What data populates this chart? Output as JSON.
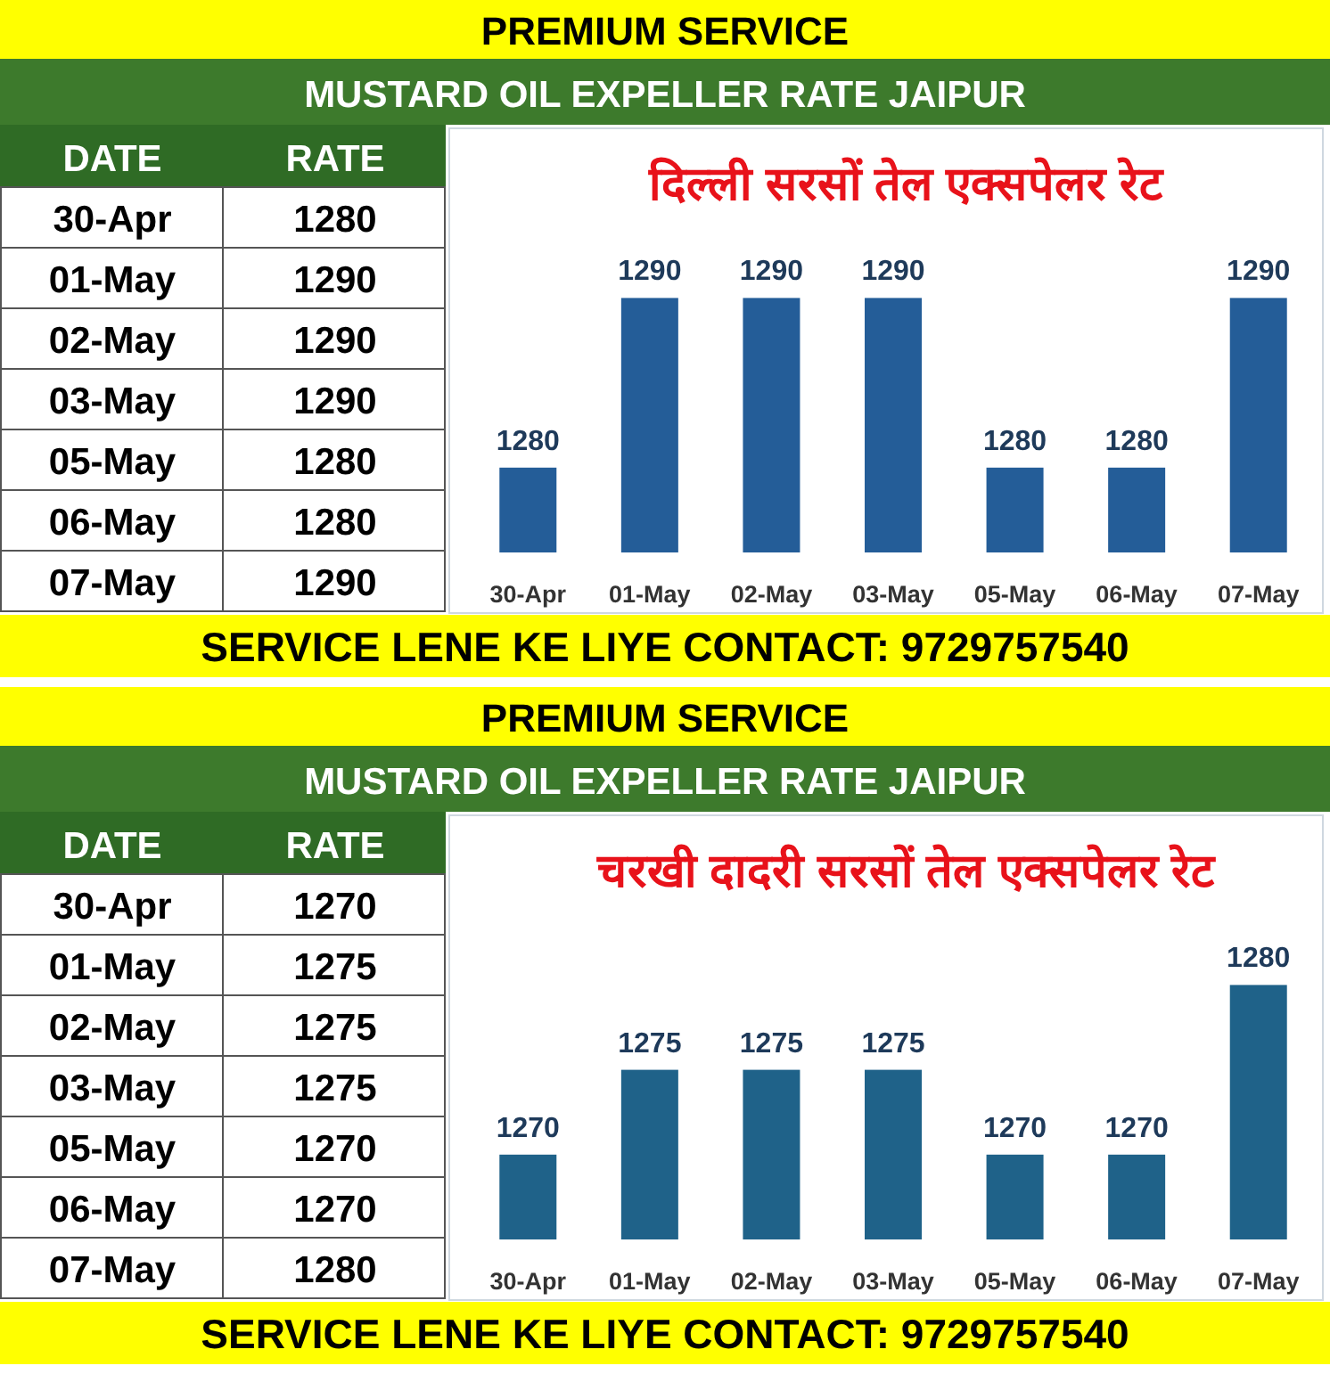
{
  "chart_data": [
    {
      "type": "bar",
      "title": "दिल्ली सरसों तेल एक्सपेलर रेट",
      "categories": [
        "30-Apr",
        "01-May",
        "02-May",
        "03-May",
        "05-May",
        "06-May",
        "07-May"
      ],
      "values": [
        1280,
        1290,
        1290,
        1290,
        1280,
        1280,
        1290
      ],
      "color": "#245d98",
      "ylim": [
        1275,
        1300
      ],
      "data_labels": true,
      "annotations": [
        "PREMIUM SERVICE",
        "MUSTARD OIL EXPELLER RATE JAIPUR",
        "DATE",
        "RATE",
        "SERVICE LENE KE LIYE CONTACT: 9729757540",
        "1280",
        "1290",
        "1290",
        "1290",
        "1280",
        "1280",
        "1290"
      ]
    },
    {
      "type": "bar",
      "title": "चरखी दादरी सरसों तेल एक्सपेलर रेट",
      "categories": [
        "30-Apr",
        "01-May",
        "02-May",
        "03-May",
        "05-May",
        "06-May",
        "07-May"
      ],
      "values": [
        1270,
        1275,
        1275,
        1275,
        1270,
        1270,
        1280
      ],
      "color": "#1f6289",
      "ylim": [
        1265,
        1290
      ],
      "data_labels": true,
      "annotations": [
        "PREMIUM SERVICE",
        "MUSTARD OIL EXPELLER RATE JAIPUR",
        "DATE",
        "RATE",
        "SERVICE LENE KE LIYE CONTACT: 9729757540",
        "1270",
        "1275",
        "1275",
        "1275",
        "1270",
        "1270",
        "1280"
      ]
    }
  ]
}
